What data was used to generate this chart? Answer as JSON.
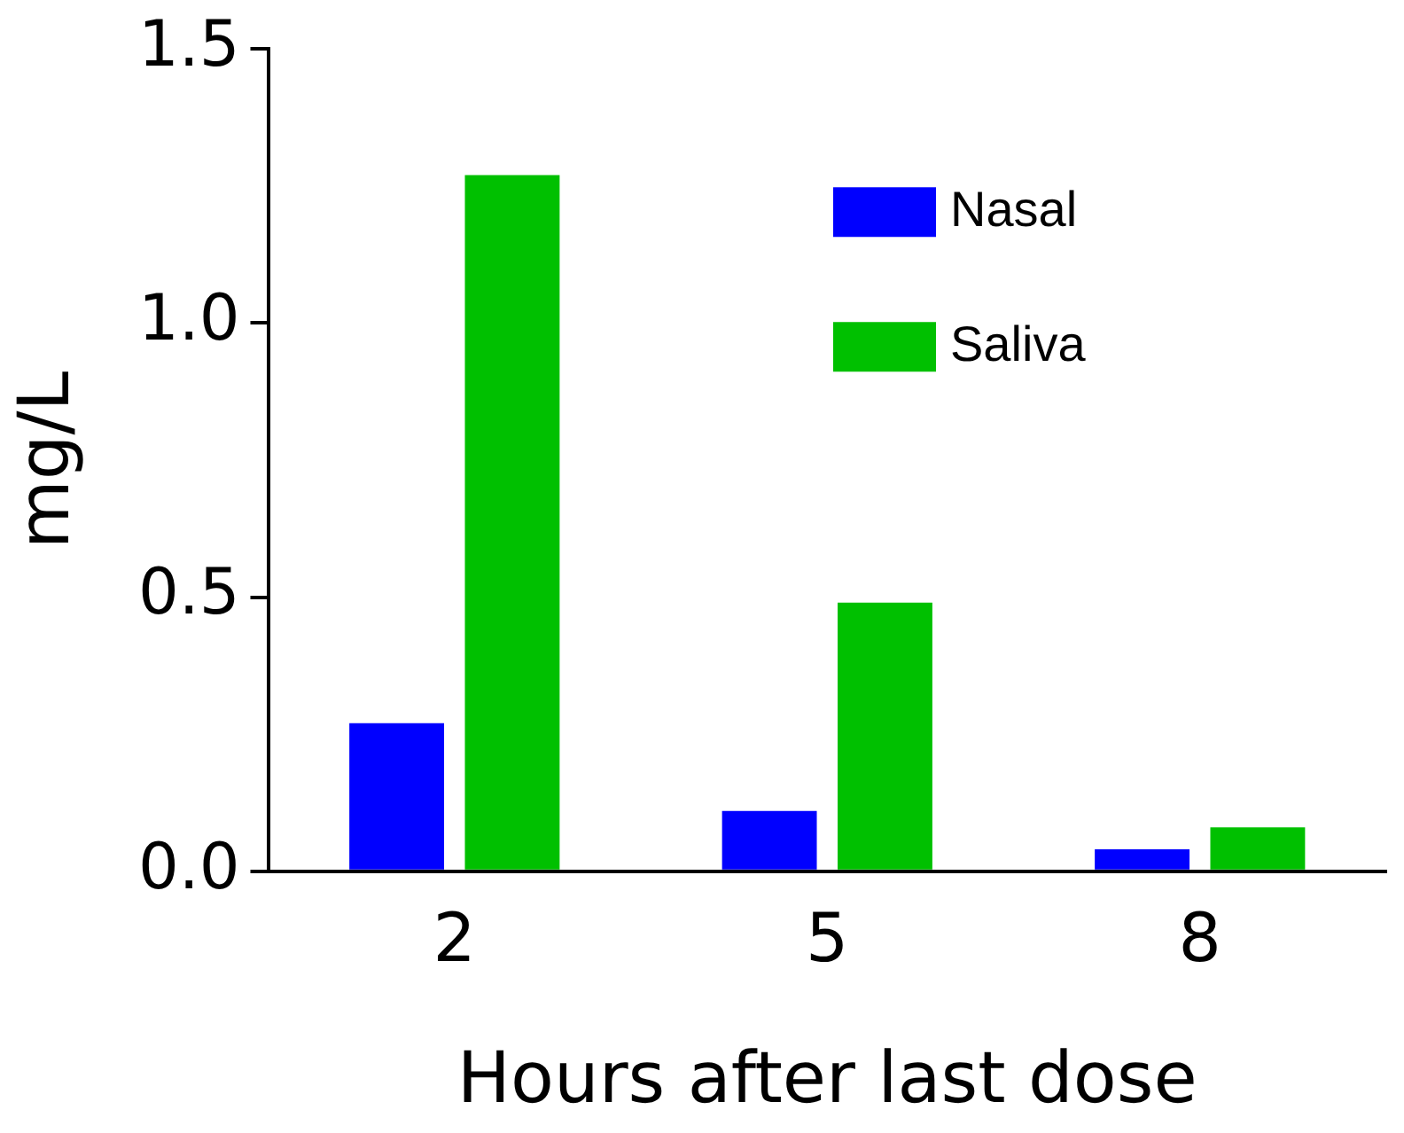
{
  "chart_data": {
    "type": "bar",
    "xlabel": "Hours after last dose",
    "ylabel": "mg/L",
    "categories": [
      "2",
      "5",
      "8"
    ],
    "series": [
      {
        "name": "Nasal",
        "color": "#0000ff",
        "values": [
          0.27,
          0.11,
          0.04
        ]
      },
      {
        "name": "Saliva",
        "color": "#00c000",
        "values": [
          1.27,
          0.49,
          0.08
        ]
      }
    ],
    "ylim": [
      0,
      1.5
    ],
    "yticks": [
      {
        "value": 0,
        "label": "0.0"
      },
      {
        "value": 0.5,
        "label": "0.5"
      },
      {
        "value": 1,
        "label": "1.0"
      },
      {
        "value": 1.5,
        "label": "1.5"
      }
    ],
    "grid": false,
    "legend": "top right"
  }
}
